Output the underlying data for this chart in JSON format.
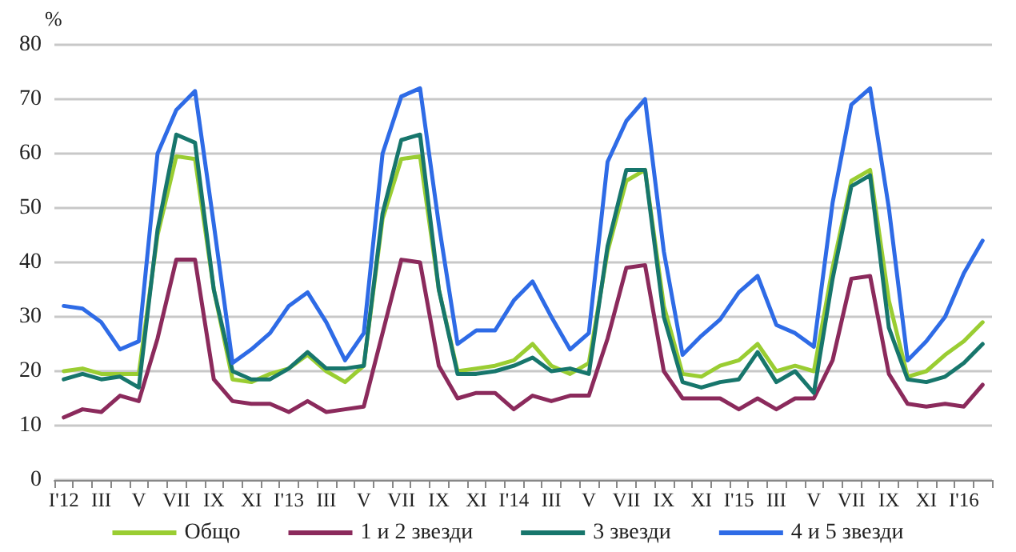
{
  "chart_data": {
    "type": "line",
    "ylabel": "%",
    "categories": [
      "I'12",
      null,
      "III",
      null,
      "V",
      null,
      "VII",
      null,
      "IX",
      null,
      "XI",
      null,
      "I'13",
      null,
      "III",
      null,
      "V",
      null,
      "VII",
      null,
      "IX",
      null,
      "XI",
      null,
      "I'14",
      null,
      "III",
      null,
      "V",
      null,
      "VII",
      null,
      "IX",
      null,
      "XI",
      null,
      "I'15",
      null,
      "III",
      null,
      "V",
      null,
      "VII",
      null,
      "IX",
      null,
      "XI",
      null,
      "I'16",
      null
    ],
    "series": [
      {
        "name": "Общо",
        "color": "#9acd32",
        "values": [
          20,
          20.5,
          19.5,
          19.5,
          19.5,
          45,
          59.5,
          59,
          35,
          18.5,
          18,
          19.5,
          20.5,
          23,
          20,
          18,
          21,
          48,
          59,
          59.5,
          35,
          20,
          20.5,
          21,
          22,
          25,
          21,
          19.5,
          21.5,
          42,
          55,
          57,
          32,
          19.5,
          19,
          21,
          22,
          25,
          20,
          21,
          20,
          39,
          55,
          57,
          33,
          19,
          20,
          23,
          25.5,
          29
        ]
      },
      {
        "name": "1 и 2 звезди",
        "color": "#8b2a5c",
        "values": [
          11.5,
          13,
          12.5,
          15.5,
          14.5,
          26,
          40.5,
          40.5,
          18.5,
          14.5,
          14,
          14,
          12.5,
          14.5,
          12.5,
          13,
          13.5,
          27,
          40.5,
          40,
          21,
          15,
          16,
          16,
          13,
          15.5,
          14.5,
          15.5,
          15.5,
          26,
          39,
          39.5,
          20,
          15,
          15,
          15,
          13,
          15,
          13,
          15,
          15,
          22,
          37,
          37.5,
          19.5,
          14,
          13.5,
          14,
          13.5,
          17.5
        ]
      },
      {
        "name": "3 звезди",
        "color": "#17766c",
        "values": [
          18.5,
          19.5,
          18.5,
          19,
          17,
          46,
          63.5,
          62,
          35,
          20,
          18.5,
          18.5,
          20.5,
          23.5,
          20.5,
          20.5,
          21,
          49,
          62.5,
          63.5,
          35,
          19.5,
          19.5,
          20,
          21,
          22.5,
          20,
          20.5,
          19.5,
          43,
          57,
          57,
          30,
          18,
          17,
          18,
          18.5,
          23.5,
          18,
          20,
          16,
          37,
          54,
          56,
          28,
          18.5,
          18,
          19,
          21.5,
          25
        ]
      },
      {
        "name": "4 и 5 звезди",
        "color": "#2e6be6",
        "values": [
          32,
          31.5,
          29,
          24,
          25.5,
          60,
          68,
          71.5,
          47,
          21.5,
          24,
          27,
          32,
          34.5,
          29,
          22,
          27,
          60,
          70.5,
          72,
          47,
          25,
          27.5,
          27.5,
          33,
          36.5,
          30,
          24,
          27,
          58.5,
          66,
          70,
          42,
          23,
          26.5,
          29.5,
          34.5,
          37.5,
          28.5,
          27,
          24.5,
          51,
          69,
          72,
          50,
          22,
          25.5,
          30,
          38,
          44
        ]
      }
    ],
    "ylim": [
      0,
      80
    ],
    "yticks": [
      0,
      10,
      20,
      30,
      40,
      50,
      60,
      70,
      80
    ],
    "grid": "y",
    "legend": "bottom",
    "marker": "none",
    "line_style": "solid"
  }
}
